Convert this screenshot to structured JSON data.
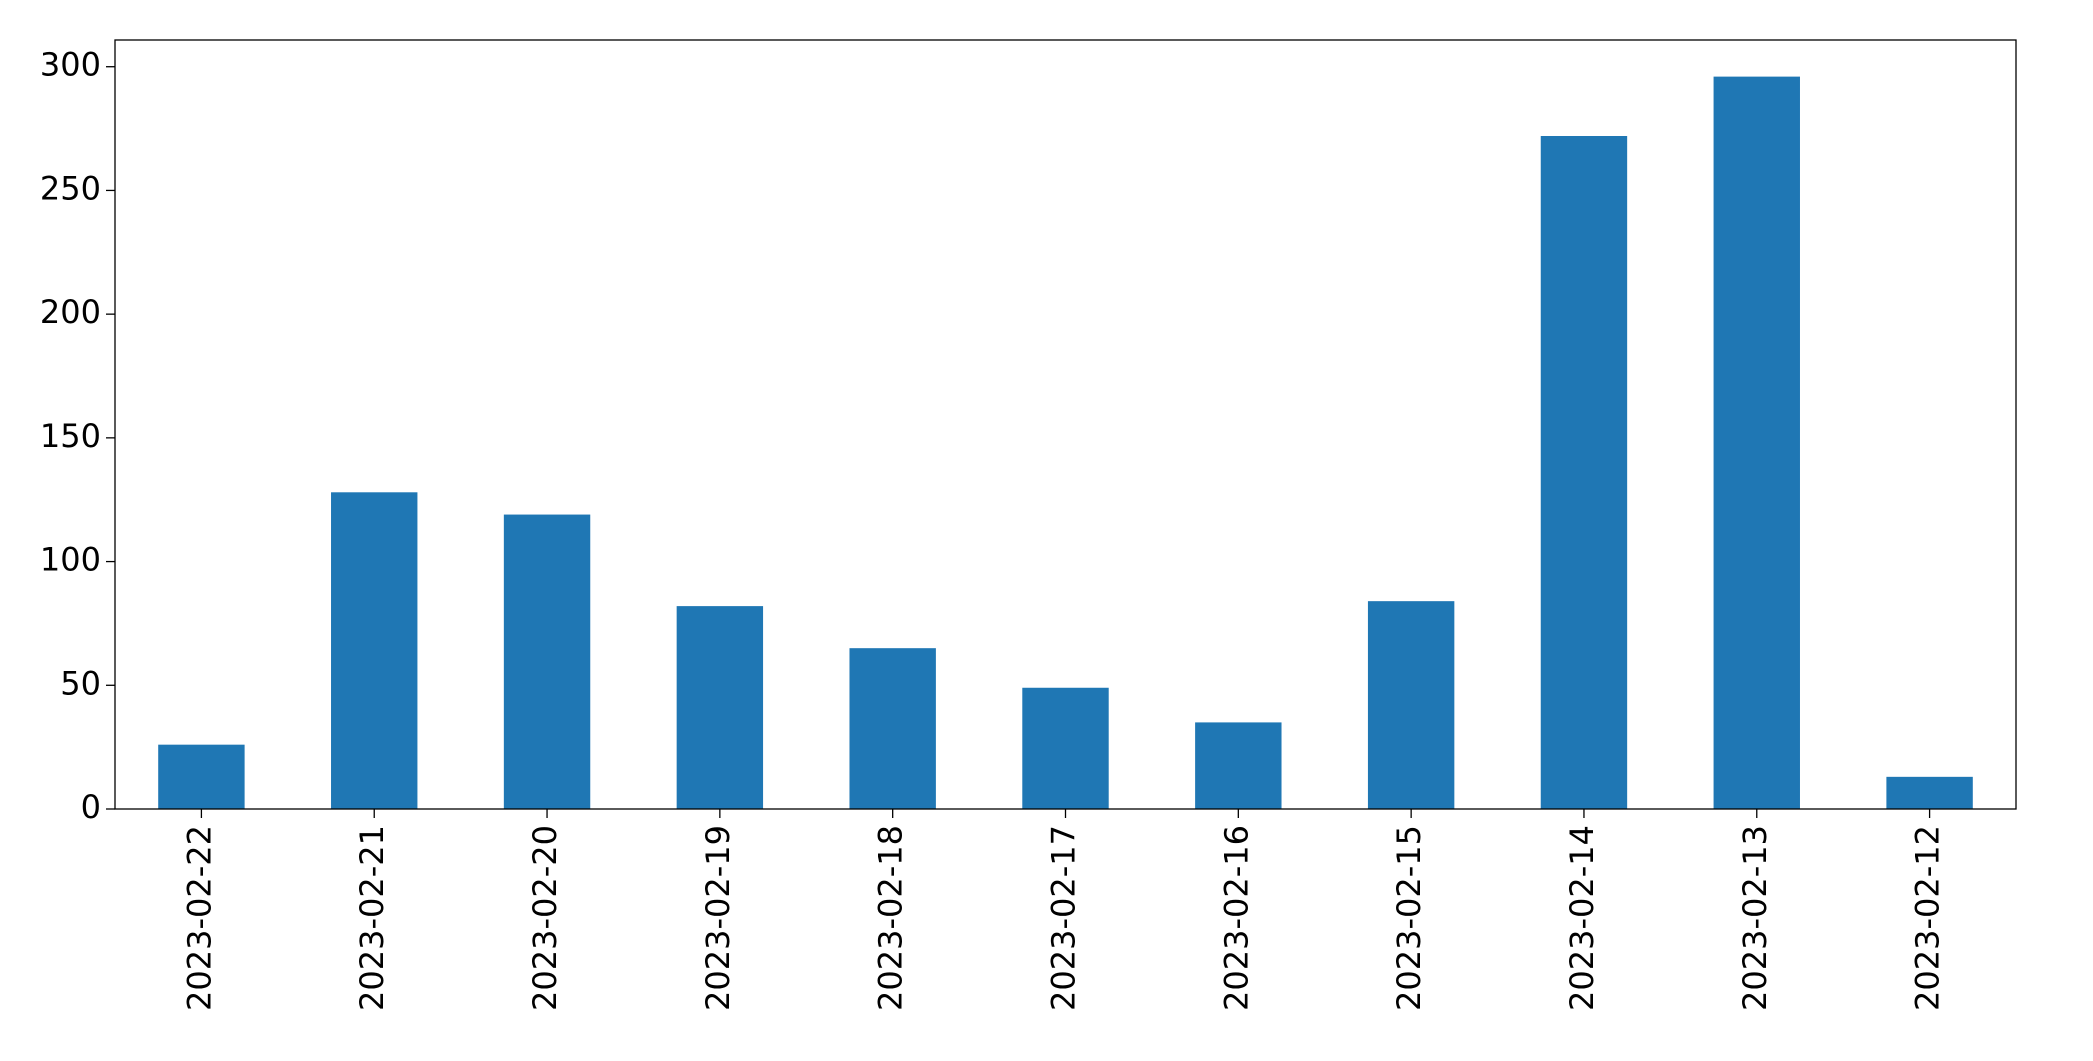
{
  "chart_data": {
    "type": "bar",
    "categories": [
      "2023-02-22",
      "2023-02-21",
      "2023-02-20",
      "2023-02-19",
      "2023-02-18",
      "2023-02-17",
      "2023-02-16",
      "2023-02-15",
      "2023-02-14",
      "2023-02-13",
      "2023-02-12"
    ],
    "values": [
      26,
      128,
      119,
      82,
      65,
      49,
      35,
      84,
      272,
      296,
      13
    ],
    "color": "#1f77b4",
    "ylim": [
      0,
      310.8
    ],
    "yticks": [
      0,
      50,
      100,
      150,
      200,
      250,
      300
    ],
    "grid": false
  }
}
